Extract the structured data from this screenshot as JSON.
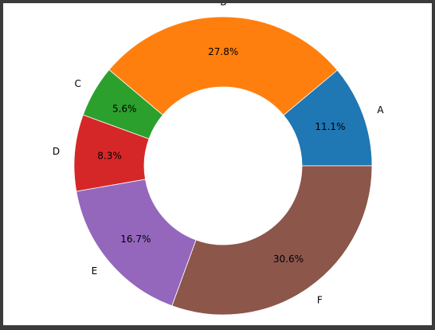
{
  "chart_data": {
    "type": "pie",
    "donut": true,
    "categories": [
      "A",
      "B",
      "C",
      "D",
      "E",
      "F"
    ],
    "values": [
      11.1,
      27.8,
      5.6,
      8.3,
      16.7,
      30.6
    ],
    "percent_labels": [
      "11.1%",
      "27.8%",
      "5.6%",
      "8.3%",
      "16.7%",
      "30.6%"
    ],
    "colors": [
      "#1f77b4",
      "#ff7f0e",
      "#2ca02c",
      "#d62728",
      "#9467bd",
      "#8c564b"
    ],
    "start_angle_deg": 0,
    "direction": "counterclockwise",
    "title": "",
    "legend": "none"
  }
}
